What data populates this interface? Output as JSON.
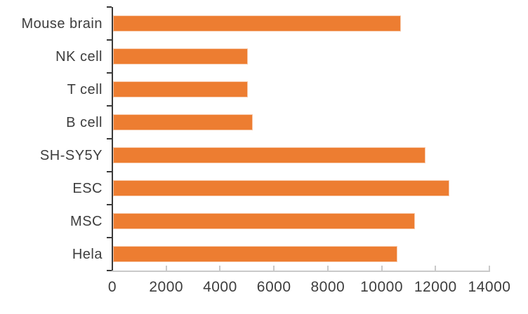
{
  "chart_data": {
    "type": "bar",
    "orientation": "horizontal",
    "title": "",
    "xlabel": "",
    "ylabel": "",
    "categories": [
      "Mouse brain",
      "NK cell",
      "T cell",
      "B cell",
      "SH-SY5Y",
      "ESC",
      "MSC",
      "Hela"
    ],
    "values": [
      10700,
      5000,
      5000,
      5200,
      11600,
      12500,
      11200,
      10550
    ],
    "xlim": [
      0,
      14000
    ],
    "x_ticks": [
      0,
      2000,
      4000,
      6000,
      8000,
      10000,
      12000,
      14000
    ],
    "x_tick_labels": [
      "0",
      "2000",
      "4000",
      "6000",
      "8000",
      "10000",
      "12000",
      "14000"
    ],
    "grid": false,
    "legend": false,
    "colors": {
      "bar_fill": "#ED7D31",
      "bar_border": "#F8CBAD",
      "y_axis": "#3A3A3A",
      "x_axis": "#C9C9C9",
      "text": "#3D3D3D"
    }
  }
}
